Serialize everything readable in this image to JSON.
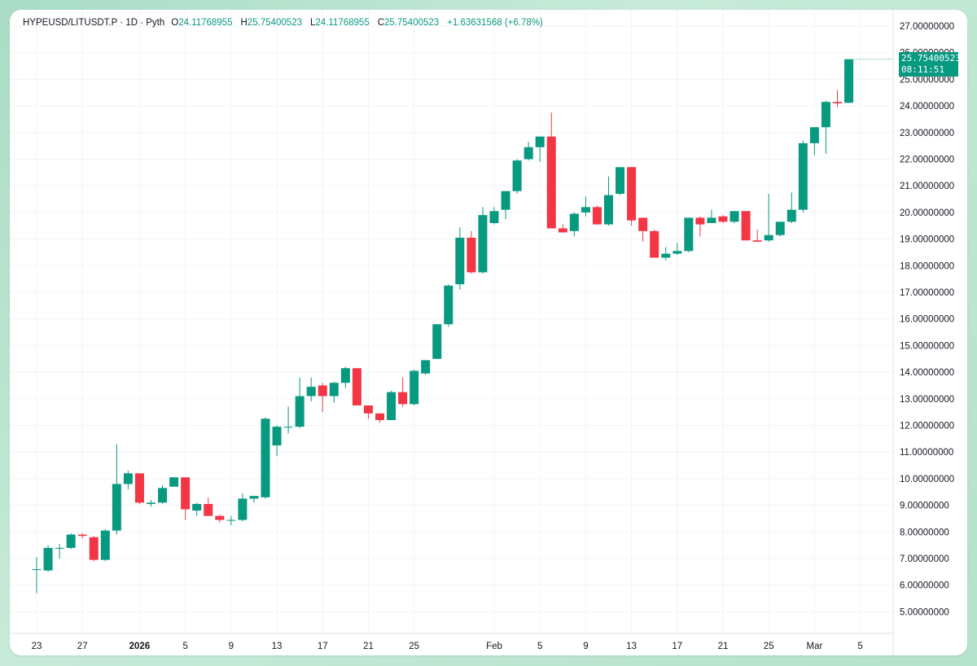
{
  "legend": {
    "symbol": "HYPEUSD/LITUSDT.P · 1D · Pyth",
    "open_label": "O",
    "open": "24.11768955",
    "high_label": "H",
    "high": "25.75400523",
    "low_label": "L",
    "low": "24.11768955",
    "close_label": "C",
    "close": "25.75400523",
    "change": "+1.63631568 (+6.78%)"
  },
  "price_tag": {
    "price": "25.75400523",
    "countdown": "08:11:51"
  },
  "colors": {
    "up": "#089981",
    "down": "#f23645",
    "grid": "#f0f3fa",
    "text": "#131722"
  },
  "chart_data": {
    "type": "candlestick",
    "y_axis": {
      "min": 4.5,
      "max": 27.5,
      "side": "right",
      "ticks": [
        "5.00000000",
        "6.00000000",
        "7.00000000",
        "8.00000000",
        "9.00000000",
        "10.00000000",
        "11.00000000",
        "12.00000000",
        "13.00000000",
        "14.00000000",
        "15.00000000",
        "16.00000000",
        "17.00000000",
        "18.00000000",
        "19.00000000",
        "20.00000000",
        "21.00000000",
        "22.00000000",
        "23.00000000",
        "24.00000000",
        "25.00000000",
        "26.00000000",
        "27.00000000"
      ]
    },
    "x_axis": {
      "ticks": [
        {
          "label": "23",
          "i": 0
        },
        {
          "label": "27",
          "i": 4
        },
        {
          "label": "2026",
          "i": 9,
          "bold": true
        },
        {
          "label": "5",
          "i": 13
        },
        {
          "label": "9",
          "i": 17
        },
        {
          "label": "13",
          "i": 21
        },
        {
          "label": "17",
          "i": 25
        },
        {
          "label": "21",
          "i": 29
        },
        {
          "label": "25",
          "i": 33
        },
        {
          "label": "Feb",
          "i": 40
        },
        {
          "label": "5",
          "i": 44
        },
        {
          "label": "9",
          "i": 48
        },
        {
          "label": "13",
          "i": 52
        },
        {
          "label": "17",
          "i": 56
        },
        {
          "label": "21",
          "i": 60
        },
        {
          "label": "25",
          "i": 64
        },
        {
          "label": "Mar",
          "i": 68
        },
        {
          "label": "5",
          "i": 72
        }
      ]
    },
    "candles": [
      {
        "o": 6.6,
        "h": 7.05,
        "l": 5.7,
        "c": 6.6
      },
      {
        "o": 6.55,
        "h": 7.5,
        "l": 6.5,
        "c": 7.4
      },
      {
        "o": 7.4,
        "h": 7.55,
        "l": 7.0,
        "c": 7.4
      },
      {
        "o": 7.4,
        "h": 7.95,
        "l": 7.35,
        "c": 7.9
      },
      {
        "o": 7.9,
        "h": 7.95,
        "l": 7.75,
        "c": 7.85
      },
      {
        "o": 7.8,
        "h": 7.85,
        "l": 6.9,
        "c": 6.95
      },
      {
        "o": 6.95,
        "h": 8.1,
        "l": 6.9,
        "c": 8.05
      },
      {
        "o": 8.05,
        "h": 11.3,
        "l": 7.9,
        "c": 9.8
      },
      {
        "o": 9.8,
        "h": 10.3,
        "l": 9.6,
        "c": 10.2
      },
      {
        "o": 10.2,
        "h": 10.2,
        "l": 9.05,
        "c": 9.1
      },
      {
        "o": 9.05,
        "h": 9.2,
        "l": 8.95,
        "c": 9.1
      },
      {
        "o": 9.1,
        "h": 9.75,
        "l": 9.05,
        "c": 9.65
      },
      {
        "o": 9.7,
        "h": 10.05,
        "l": 9.7,
        "c": 10.05
      },
      {
        "o": 10.05,
        "h": 10.05,
        "l": 8.45,
        "c": 8.85
      },
      {
        "o": 8.8,
        "h": 9.1,
        "l": 8.6,
        "c": 9.05
      },
      {
        "o": 9.05,
        "h": 9.3,
        "l": 8.6,
        "c": 8.6
      },
      {
        "o": 8.6,
        "h": 8.65,
        "l": 8.35,
        "c": 8.45
      },
      {
        "o": 8.45,
        "h": 8.6,
        "l": 8.25,
        "c": 8.45
      },
      {
        "o": 8.45,
        "h": 9.45,
        "l": 8.4,
        "c": 9.25
      },
      {
        "o": 9.25,
        "h": 9.35,
        "l": 9.1,
        "c": 9.35
      },
      {
        "o": 9.3,
        "h": 12.3,
        "l": 9.25,
        "c": 12.25
      },
      {
        "o": 11.25,
        "h": 12.0,
        "l": 10.85,
        "c": 11.95
      },
      {
        "o": 11.95,
        "h": 12.7,
        "l": 11.7,
        "c": 11.95
      },
      {
        "o": 11.95,
        "h": 13.8,
        "l": 11.9,
        "c": 13.1
      },
      {
        "o": 13.1,
        "h": 13.8,
        "l": 12.9,
        "c": 13.45
      },
      {
        "o": 13.5,
        "h": 13.6,
        "l": 12.5,
        "c": 13.1
      },
      {
        "o": 13.1,
        "h": 13.65,
        "l": 12.85,
        "c": 13.6
      },
      {
        "o": 13.6,
        "h": 14.2,
        "l": 13.4,
        "c": 14.15
      },
      {
        "o": 14.15,
        "h": 14.15,
        "l": 12.75,
        "c": 12.75
      },
      {
        "o": 12.75,
        "h": 12.75,
        "l": 12.25,
        "c": 12.45
      },
      {
        "o": 12.45,
        "h": 12.45,
        "l": 12.1,
        "c": 12.2
      },
      {
        "o": 12.2,
        "h": 13.3,
        "l": 12.2,
        "c": 13.25
      },
      {
        "o": 13.25,
        "h": 13.8,
        "l": 12.7,
        "c": 12.8
      },
      {
        "o": 12.8,
        "h": 14.1,
        "l": 12.75,
        "c": 14.05
      },
      {
        "o": 13.95,
        "h": 14.45,
        "l": 13.9,
        "c": 14.45
      },
      {
        "o": 14.5,
        "h": 15.8,
        "l": 14.5,
        "c": 15.8
      },
      {
        "o": 15.8,
        "h": 17.3,
        "l": 15.7,
        "c": 17.25
      },
      {
        "o": 17.3,
        "h": 19.45,
        "l": 17.1,
        "c": 19.05
      },
      {
        "o": 19.05,
        "h": 19.3,
        "l": 17.7,
        "c": 17.75
      },
      {
        "o": 17.75,
        "h": 20.2,
        "l": 17.7,
        "c": 19.9
      },
      {
        "o": 19.6,
        "h": 20.2,
        "l": 19.55,
        "c": 20.05
      },
      {
        "o": 20.1,
        "h": 20.8,
        "l": 19.75,
        "c": 20.8
      },
      {
        "o": 20.8,
        "h": 22.0,
        "l": 20.7,
        "c": 21.95
      },
      {
        "o": 22.0,
        "h": 22.65,
        "l": 21.95,
        "c": 22.45
      },
      {
        "o": 22.45,
        "h": 22.85,
        "l": 21.9,
        "c": 22.85
      },
      {
        "o": 22.85,
        "h": 23.75,
        "l": 19.4,
        "c": 19.4
      },
      {
        "o": 19.4,
        "h": 19.55,
        "l": 19.25,
        "c": 19.25
      },
      {
        "o": 19.3,
        "h": 20.0,
        "l": 19.1,
        "c": 19.95
      },
      {
        "o": 20.0,
        "h": 20.6,
        "l": 19.85,
        "c": 20.2
      },
      {
        "o": 20.2,
        "h": 20.25,
        "l": 19.55,
        "c": 19.55
      },
      {
        "o": 19.55,
        "h": 21.35,
        "l": 19.5,
        "c": 20.65
      },
      {
        "o": 20.7,
        "h": 21.7,
        "l": 20.65,
        "c": 21.7
      },
      {
        "o": 21.7,
        "h": 21.7,
        "l": 19.5,
        "c": 19.7
      },
      {
        "o": 19.8,
        "h": 19.8,
        "l": 18.9,
        "c": 19.3
      },
      {
        "o": 19.3,
        "h": 19.35,
        "l": 18.3,
        "c": 18.3
      },
      {
        "o": 18.3,
        "h": 18.7,
        "l": 18.2,
        "c": 18.45
      },
      {
        "o": 18.45,
        "h": 18.85,
        "l": 18.4,
        "c": 18.55
      },
      {
        "o": 18.55,
        "h": 19.8,
        "l": 18.5,
        "c": 19.8
      },
      {
        "o": 19.8,
        "h": 19.85,
        "l": 19.1,
        "c": 19.55
      },
      {
        "o": 19.6,
        "h": 20.1,
        "l": 19.6,
        "c": 19.8
      },
      {
        "o": 19.85,
        "h": 19.9,
        "l": 19.6,
        "c": 19.65
      },
      {
        "o": 19.65,
        "h": 20.05,
        "l": 19.6,
        "c": 20.05
      },
      {
        "o": 20.05,
        "h": 20.05,
        "l": 18.95,
        "c": 18.95
      },
      {
        "o": 18.95,
        "h": 19.35,
        "l": 18.9,
        "c": 18.9
      },
      {
        "o": 18.95,
        "h": 20.7,
        "l": 18.9,
        "c": 19.15
      },
      {
        "o": 19.15,
        "h": 19.65,
        "l": 19.1,
        "c": 19.65
      },
      {
        "o": 19.65,
        "h": 20.75,
        "l": 19.6,
        "c": 20.1
      },
      {
        "o": 20.1,
        "h": 22.7,
        "l": 20.0,
        "c": 22.6
      },
      {
        "o": 22.6,
        "h": 23.2,
        "l": 22.15,
        "c": 23.2
      },
      {
        "o": 23.2,
        "h": 24.2,
        "l": 22.2,
        "c": 24.15
      },
      {
        "o": 24.15,
        "h": 24.6,
        "l": 23.95,
        "c": 24.1
      },
      {
        "o": 24.11768955,
        "h": 25.75400523,
        "l": 24.11768955,
        "c": 25.75400523
      }
    ]
  }
}
